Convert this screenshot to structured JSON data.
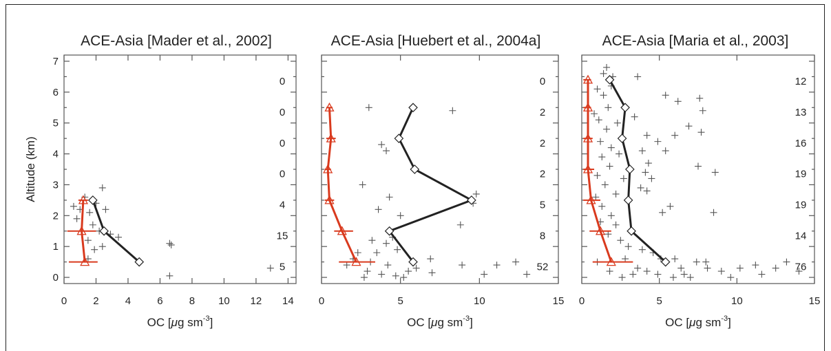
{
  "colors": {
    "observed": "#222222",
    "model": "#d93a1e",
    "scatter": "#555555",
    "axis": "#555555"
  },
  "shared_axes": {
    "ylabel": "Altitude (km)",
    "ylim": [
      -0.2,
      7.2
    ],
    "yticks": [
      0,
      1,
      2,
      3,
      4,
      5,
      6,
      7
    ]
  },
  "chart_data": [
    {
      "type": "line",
      "title": "ACE-Asia [Mader et al., 2002]",
      "xlabel_main": "OC [",
      "xlabel_mu": "μ",
      "xlabel_rest": "g sm",
      "xlabel_sup": "-3",
      "xlabel_end": "]",
      "xlim": [
        0,
        14.5
      ],
      "xticks": [
        0,
        2,
        4,
        6,
        8,
        10,
        12,
        14
      ],
      "series": [
        {
          "role": "observed",
          "marker": "diamond",
          "x": [
            4.7,
            2.5,
            1.8
          ],
          "y": [
            0.5,
            1.5,
            2.5
          ]
        },
        {
          "role": "model",
          "marker": "triangle",
          "x": [
            1.3,
            1.1,
            1.2
          ],
          "y": [
            0.5,
            1.5,
            2.5
          ],
          "error_low": [
            0.3,
            0.2,
            0.9
          ],
          "error_high": [
            2.1,
            2.0,
            1.5
          ]
        }
      ],
      "scatter": [
        [
          1.6,
          2.1
        ],
        [
          1.0,
          2.2
        ],
        [
          0.6,
          2.3
        ],
        [
          2.0,
          2.4
        ],
        [
          2.6,
          2.2
        ],
        [
          2.4,
          2.9
        ],
        [
          1.5,
          1.2
        ],
        [
          1.8,
          1.7
        ],
        [
          2.2,
          1.5
        ],
        [
          2.9,
          1.4
        ],
        [
          3.4,
          1.3
        ],
        [
          1.9,
          0.9
        ],
        [
          1.5,
          0.6
        ],
        [
          2.4,
          1.0
        ],
        [
          6.6,
          1.1
        ],
        [
          6.7,
          1.05
        ],
        [
          6.6,
          0.05
        ],
        [
          12.9,
          0.3
        ],
        [
          1.3,
          2.6
        ],
        [
          0.8,
          1.9
        ]
      ],
      "counts": [
        "5",
        "15",
        "4",
        "0",
        "0",
        "0",
        "0"
      ],
      "count_altitudes": [
        0.35,
        1.35,
        2.35,
        3.35,
        4.35,
        5.35,
        6.35
      ]
    },
    {
      "type": "line",
      "title": "ACE-Asia [Huebert et al., 2004a]",
      "xlabel_main": "OC [",
      "xlabel_mu": "μ",
      "xlabel_rest": "g sm",
      "xlabel_sup": "-3",
      "xlabel_end": "]",
      "xlim": [
        0,
        15
      ],
      "xticks": [
        0,
        5,
        10,
        15
      ],
      "series": [
        {
          "role": "observed",
          "marker": "diamond",
          "x": [
            5.8,
            4.3,
            9.5,
            5.9,
            4.9,
            5.8
          ],
          "y": [
            0.5,
            1.5,
            2.5,
            3.5,
            4.5,
            5.5
          ]
        },
        {
          "role": "model",
          "marker": "triangle",
          "x": [
            2.2,
            1.3,
            0.5,
            0.4,
            0.6,
            0.5
          ],
          "y": [
            0.5,
            1.5,
            2.5,
            3.5,
            4.5,
            5.5
          ],
          "error_low": [
            1.1,
            0.8,
            0.2,
            0.2,
            0.3,
            0.3
          ],
          "error_high": [
            3.4,
            2.0,
            0.8,
            0.6,
            0.9,
            0.7
          ]
        }
      ],
      "scatter": [
        [
          3.0,
          5.5
        ],
        [
          8.3,
          5.4
        ],
        [
          3.8,
          4.3
        ],
        [
          4.1,
          4.1
        ],
        [
          2.6,
          3.0
        ],
        [
          4.3,
          2.6
        ],
        [
          3.6,
          2.2
        ],
        [
          9.8,
          2.7
        ],
        [
          9.6,
          2.4
        ],
        [
          5.0,
          2.0
        ],
        [
          8.8,
          1.7
        ],
        [
          4.1,
          1.1
        ],
        [
          4.8,
          0.9
        ],
        [
          3.5,
          0.8
        ],
        [
          2.0,
          0.6
        ],
        [
          3.1,
          0.5
        ],
        [
          4.2,
          0.4
        ],
        [
          6.0,
          0.3
        ],
        [
          7.0,
          0.15
        ],
        [
          8.9,
          0.4
        ],
        [
          11.1,
          0.4
        ],
        [
          12.3,
          0.5
        ],
        [
          13.0,
          0.1
        ],
        [
          10.3,
          0.1
        ],
        [
          2.7,
          0.0
        ],
        [
          3.8,
          0.1
        ],
        [
          4.7,
          0.05
        ],
        [
          5.5,
          0.2
        ],
        [
          3.2,
          1.2
        ],
        [
          2.3,
          0.8
        ],
        [
          1.6,
          0.4
        ],
        [
          6.9,
          0.6
        ],
        [
          4.5,
          1.3
        ],
        [
          2.9,
          0.2
        ],
        [
          5.2,
          0.0
        ]
      ],
      "counts": [
        "52",
        "8",
        "5",
        "2",
        "2",
        "2",
        "0"
      ],
      "count_altitudes": [
        0.35,
        1.35,
        2.35,
        3.35,
        4.35,
        5.35,
        6.35
      ]
    },
    {
      "type": "line",
      "title": "ACE-Asia [Maria et al., 2003]",
      "xlabel_main": "OC [",
      "xlabel_mu": "μ",
      "xlabel_rest": "g sm",
      "xlabel_sup": "-3",
      "xlabel_end": "]",
      "xlim": [
        0,
        15
      ],
      "xticks": [
        0,
        5,
        10,
        15
      ],
      "series": [
        {
          "role": "observed",
          "marker": "diamond",
          "x": [
            5.4,
            3.2,
            3.0,
            3.1,
            2.6,
            2.8,
            1.8
          ],
          "y": [
            0.5,
            1.5,
            2.5,
            3.5,
            4.5,
            5.5,
            6.4
          ]
        },
        {
          "role": "model",
          "marker": "triangle",
          "x": [
            1.9,
            1.2,
            0.6,
            0.4,
            0.4,
            0.4,
            0.4
          ],
          "y": [
            0.5,
            1.5,
            2.5,
            3.5,
            4.5,
            5.5,
            6.4
          ],
          "error_low": [
            0.7,
            0.5,
            0.1,
            0.1,
            0.1,
            0.1,
            0.1
          ],
          "error_high": [
            3.3,
            1.9,
            1.2,
            0.8,
            0.7,
            0.6,
            0.6
          ]
        }
      ],
      "scatter": [
        [
          1.6,
          6.8
        ],
        [
          1.4,
          6.6
        ],
        [
          2.0,
          6.5
        ],
        [
          1.9,
          6.2
        ],
        [
          3.6,
          6.5
        ],
        [
          5.4,
          5.9
        ],
        [
          6.2,
          5.7
        ],
        [
          7.6,
          5.8
        ],
        [
          7.8,
          5.4
        ],
        [
          6.9,
          4.9
        ],
        [
          7.7,
          4.7
        ],
        [
          6.0,
          4.6
        ],
        [
          7.5,
          3.6
        ],
        [
          8.6,
          3.4
        ],
        [
          5.4,
          4.1
        ],
        [
          4.9,
          4.4
        ],
        [
          4.2,
          4.6
        ],
        [
          3.9,
          4.1
        ],
        [
          4.3,
          3.7
        ],
        [
          4.1,
          3.4
        ],
        [
          4.5,
          3.2
        ],
        [
          3.8,
          2.9
        ],
        [
          4.2,
          2.8
        ],
        [
          5.2,
          2.1
        ],
        [
          5.7,
          2.3
        ],
        [
          8.5,
          2.1
        ],
        [
          1.4,
          5.9
        ],
        [
          1.7,
          5.5
        ],
        [
          1.1,
          5.1
        ],
        [
          1.6,
          4.8
        ],
        [
          1.2,
          4.4
        ],
        [
          1.9,
          4.2
        ],
        [
          1.3,
          3.9
        ],
        [
          1.8,
          3.6
        ],
        [
          1.0,
          3.3
        ],
        [
          1.5,
          3.0
        ],
        [
          2.2,
          2.7
        ],
        [
          1.3,
          2.3
        ],
        [
          1.9,
          2.0
        ],
        [
          2.2,
          1.7
        ],
        [
          1.7,
          1.4
        ],
        [
          2.5,
          1.2
        ],
        [
          3.0,
          1.0
        ],
        [
          3.9,
          0.9
        ],
        [
          4.6,
          0.8
        ],
        [
          5.1,
          0.6
        ],
        [
          6.0,
          0.6
        ],
        [
          7.4,
          0.5
        ],
        [
          8.1,
          0.3
        ],
        [
          9.0,
          0.2
        ],
        [
          10.2,
          0.3
        ],
        [
          11.2,
          0.4
        ],
        [
          12.5,
          0.3
        ],
        [
          13.2,
          0.5
        ],
        [
          14.0,
          0.2
        ],
        [
          8.0,
          0.5
        ],
        [
          6.6,
          0.1
        ],
        [
          5.9,
          0.0
        ],
        [
          4.2,
          0.2
        ],
        [
          3.3,
          0.1
        ],
        [
          2.6,
          0.0
        ],
        [
          1.8,
          0.2
        ],
        [
          1.0,
          0.5
        ],
        [
          2.8,
          0.6
        ],
        [
          3.6,
          0.3
        ],
        [
          4.9,
          0.1
        ],
        [
          6.4,
          0.3
        ],
        [
          7.0,
          0.0
        ],
        [
          9.6,
          0.0
        ],
        [
          11.6,
          0.1
        ],
        [
          1.2,
          1.8
        ],
        [
          2.7,
          3.2
        ],
        [
          3.4,
          5.2
        ],
        [
          2.3,
          5.0
        ],
        [
          1.0,
          6.1
        ],
        [
          0.8,
          5.3
        ],
        [
          2.4,
          4.0
        ],
        [
          0.9,
          2.6
        ]
      ],
      "counts": [
        "76",
        "14",
        "19",
        "19",
        "16",
        "13",
        "12"
      ],
      "count_altitudes": [
        0.35,
        1.35,
        2.35,
        3.35,
        4.35,
        5.35,
        6.35
      ]
    }
  ]
}
